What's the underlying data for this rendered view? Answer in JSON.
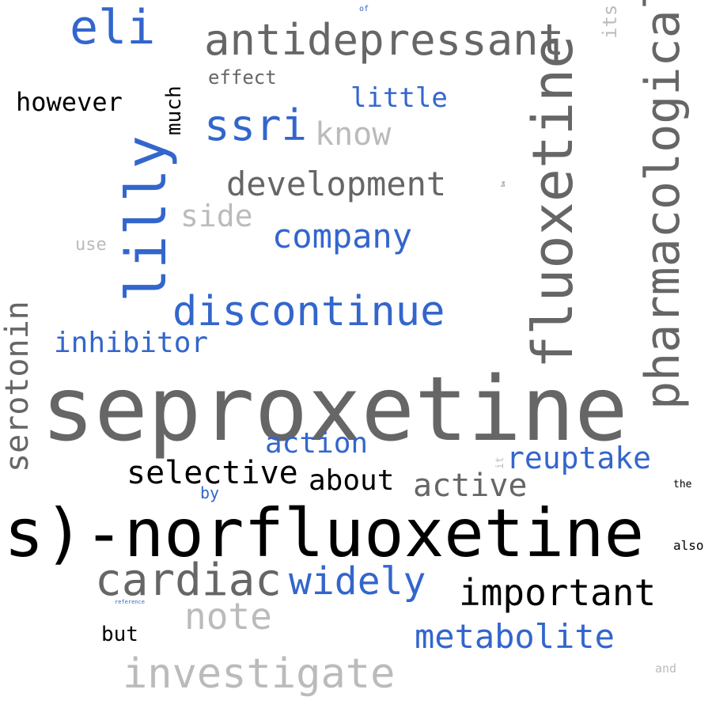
{
  "colors": {
    "background": "#ffffff",
    "dark_gray": "#666666",
    "light_gray": "#bbbbbb",
    "blue": "#3366cc",
    "black": "#000000"
  },
  "words": {
    "seproxetine": "seproxetine",
    "s_norfluoxetine": "s)-norfluoxetine",
    "fluoxetine": "fluoxetine",
    "pharmacological": "pharmacological",
    "lilly": "lilly",
    "antidepressant": "antidepressant",
    "eli": "eli",
    "ssri": "ssri",
    "discontinue": "discontinue",
    "investigate": "investigate",
    "cardiac": "cardiac",
    "important": "important",
    "metabolite": "metabolite",
    "development": "development",
    "company": "company",
    "widely": "widely",
    "serotonin": "serotonin",
    "reuptake": "reuptake",
    "selective": "selective",
    "note": "note",
    "active": "active",
    "know": "know",
    "action": "action",
    "inhibitor": "inhibitor",
    "about": "about",
    "little": "little",
    "side": "side",
    "however": "however",
    "much": "much",
    "effect": "effect",
    "its": "its",
    "use": "use",
    "but": "but",
    "by": "by",
    "of": "of",
    "the": "the",
    "also": "also",
    "and": "and",
    "it": "it",
    "reference": "reference",
    "be": "be"
  }
}
